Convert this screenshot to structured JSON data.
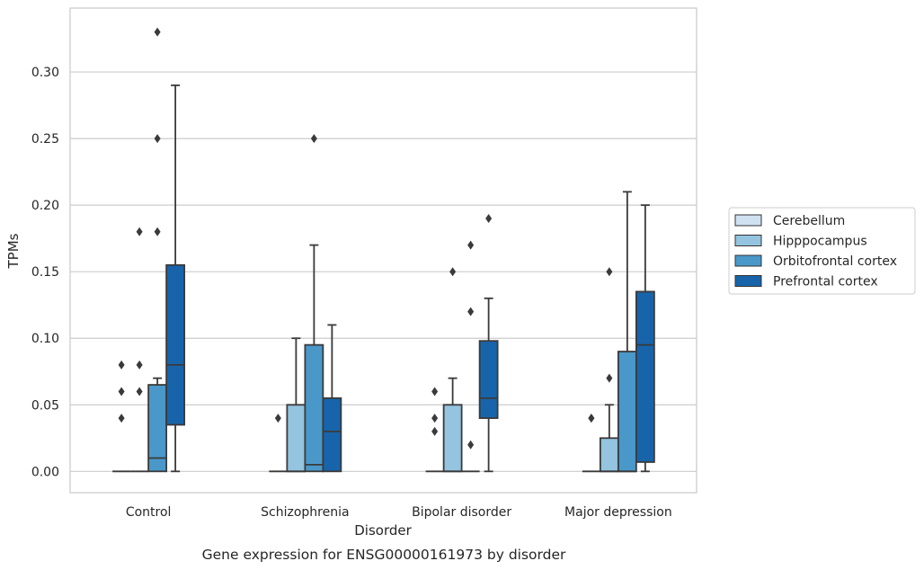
{
  "chart_data": {
    "type": "boxplot",
    "xlabel": "Disorder",
    "ylabel": "TPMs",
    "caption": "Gene expression for ENSG00000161973 by disorder",
    "ylim": [
      -0.016,
      0.348
    ],
    "yticks": [
      "0.00",
      "0.05",
      "0.10",
      "0.15",
      "0.20",
      "0.25",
      "0.30"
    ],
    "grid": "horizontal",
    "legend_position": "right",
    "categories": [
      "Control",
      "Schizophrenia",
      "Bipolar disorder",
      "Major depression"
    ],
    "series": [
      {
        "name": "Cerebellum",
        "color": "#d0e1f2",
        "boxes": [
          {
            "q1": 0,
            "median": 0,
            "q3": 0,
            "whisker_low": 0,
            "whisker_high": 0,
            "outliers": [
              0.04,
              0.06,
              0.08
            ]
          },
          {
            "q1": 0,
            "median": 0,
            "q3": 0,
            "whisker_low": 0,
            "whisker_high": 0,
            "outliers": [
              0.04
            ]
          },
          {
            "q1": 0,
            "median": 0,
            "q3": 0,
            "whisker_low": 0,
            "whisker_high": 0,
            "outliers": [
              0.03,
              0.04,
              0.06
            ]
          },
          {
            "q1": 0,
            "median": 0,
            "q3": 0,
            "whisker_low": 0,
            "whisker_high": 0,
            "outliers": [
              0.04,
              0.04
            ]
          }
        ]
      },
      {
        "name": "Hipppocampus",
        "color": "#94c4df",
        "boxes": [
          {
            "q1": 0,
            "median": 0,
            "q3": 0,
            "whisker_low": 0,
            "whisker_high": 0,
            "outliers": [
              0.06,
              0.08,
              0.18
            ]
          },
          {
            "q1": 0,
            "median": 0,
            "q3": 0.05,
            "whisker_low": 0,
            "whisker_high": 0.1,
            "outliers": []
          },
          {
            "q1": 0,
            "median": 0,
            "q3": 0.05,
            "whisker_low": 0,
            "whisker_high": 0.07,
            "outliers": [
              0.15
            ]
          },
          {
            "q1": 0,
            "median": 0,
            "q3": 0.025,
            "whisker_low": 0,
            "whisker_high": 0.05,
            "outliers": [
              0.07,
              0.15
            ]
          }
        ]
      },
      {
        "name": "Orbitofrontal cortex",
        "color": "#4a98c9",
        "boxes": [
          {
            "q1": 0,
            "median": 0.01,
            "q3": 0.065,
            "whisker_low": 0,
            "whisker_high": 0.07,
            "outliers": [
              0.18,
              0.25,
              0.33
            ]
          },
          {
            "q1": 0,
            "median": 0.005,
            "q3": 0.095,
            "whisker_low": 0,
            "whisker_high": 0.17,
            "outliers": [
              0.25
            ]
          },
          {
            "q1": 0,
            "median": 0,
            "q3": 0,
            "whisker_low": 0,
            "whisker_high": 0,
            "outliers": [
              0.02,
              0.12,
              0.17
            ]
          },
          {
            "q1": 0,
            "median": 0,
            "q3": 0.09,
            "whisker_low": 0,
            "whisker_high": 0.21,
            "outliers": []
          }
        ]
      },
      {
        "name": "Prefrontal cortex",
        "color": "#1764ab",
        "boxes": [
          {
            "q1": 0.035,
            "median": 0.08,
            "q3": 0.155,
            "whisker_low": 0,
            "whisker_high": 0.29,
            "outliers": []
          },
          {
            "q1": 0,
            "median": 0.03,
            "q3": 0.055,
            "whisker_low": 0,
            "whisker_high": 0.11,
            "outliers": []
          },
          {
            "q1": 0.04,
            "median": 0.055,
            "q3": 0.098,
            "whisker_low": 0,
            "whisker_high": 0.13,
            "outliers": [
              0.19
            ]
          },
          {
            "q1": 0.007,
            "median": 0.095,
            "q3": 0.135,
            "whisker_low": 0,
            "whisker_high": 0.2,
            "outliers": []
          }
        ]
      }
    ]
  }
}
